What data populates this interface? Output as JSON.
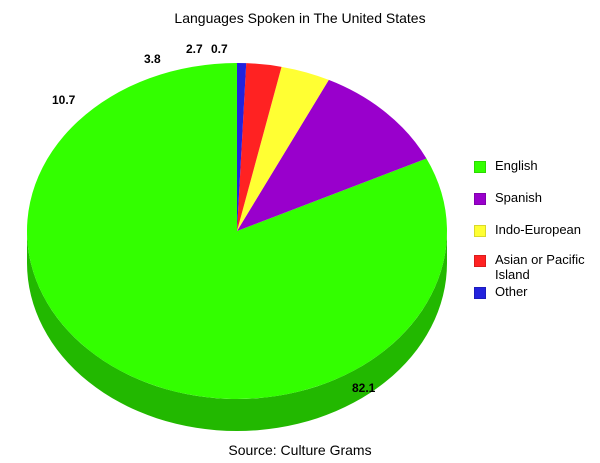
{
  "chart_data": {
    "type": "pie",
    "title": "Languages Spoken in The United States",
    "source": "Source: Culture Grams",
    "slices": [
      {
        "label": "English",
        "value": 82.1,
        "value_label": "82.1",
        "color": "#33ff00",
        "side_color": "#22b800"
      },
      {
        "label": "Spanish",
        "value": 10.7,
        "value_label": "10.7",
        "color": "#9900cc",
        "side_color": "#6a008e"
      },
      {
        "label": "Indo-European",
        "value": 3.8,
        "value_label": "3.8",
        "color": "#ffff33",
        "side_color": "#c6c61f"
      },
      {
        "label": "Asian or Pacific Island",
        "value": 2.7,
        "value_label": "2.7",
        "color": "#ff2222",
        "side_color": "#b31414"
      },
      {
        "label": "Other",
        "value": 0.7,
        "value_label": "0.7",
        "color": "#2222dd",
        "side_color": "#15159a"
      }
    ],
    "legend_position": "right",
    "start_angle": "12 o'clock",
    "direction": "counter-clockwise",
    "three_d": true
  }
}
